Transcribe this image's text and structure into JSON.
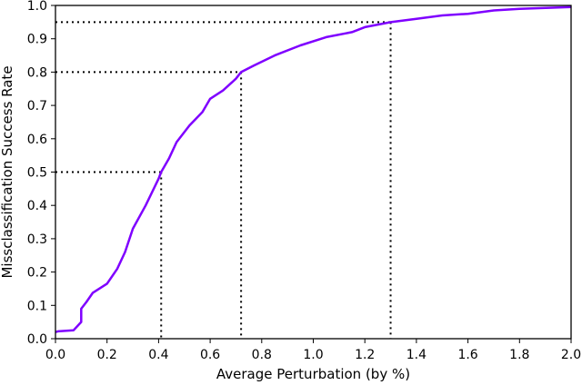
{
  "chart_data": {
    "type": "line",
    "title": "",
    "xlabel": "Average Perturbation (by %)",
    "ylabel": "Missclassification Success Rate",
    "xlim": [
      0.0,
      2.0
    ],
    "ylim": [
      0.0,
      1.0
    ],
    "xticks": [
      "0.0",
      "0.2",
      "0.4",
      "0.6",
      "0.8",
      "1.0",
      "1.2",
      "1.4",
      "1.6",
      "1.8",
      "2.0"
    ],
    "yticks": [
      "0.0",
      "0.1",
      "0.2",
      "0.3",
      "0.4",
      "0.5",
      "0.6",
      "0.7",
      "0.8",
      "0.9",
      "1.0"
    ],
    "grid": false,
    "legend": null,
    "series": [
      {
        "name": "success-rate-curve",
        "color": "#7f00ff",
        "x": [
          0.0,
          0.01,
          0.07,
          0.1,
          0.1,
          0.12,
          0.145,
          0.2,
          0.24,
          0.27,
          0.3,
          0.35,
          0.4,
          0.41,
          0.44,
          0.47,
          0.52,
          0.57,
          0.6,
          0.65,
          0.7,
          0.72,
          0.77,
          0.85,
          0.95,
          1.05,
          1.15,
          1.2,
          1.3,
          1.4,
          1.5,
          1.6,
          1.7,
          1.8,
          2.0
        ],
        "y": [
          0.02,
          0.022,
          0.025,
          0.05,
          0.09,
          0.11,
          0.138,
          0.165,
          0.21,
          0.26,
          0.33,
          0.4,
          0.48,
          0.5,
          0.54,
          0.59,
          0.64,
          0.68,
          0.72,
          0.745,
          0.78,
          0.8,
          0.82,
          0.85,
          0.88,
          0.905,
          0.92,
          0.935,
          0.95,
          0.96,
          0.97,
          0.975,
          0.985,
          0.99,
          0.995
        ]
      }
    ],
    "annotations": [
      {
        "type": "dotted-guide",
        "x": 0.41,
        "y": 0.5
      },
      {
        "type": "dotted-guide",
        "x": 0.72,
        "y": 0.8
      },
      {
        "type": "dotted-guide",
        "x": 1.3,
        "y": 0.95
      }
    ]
  }
}
